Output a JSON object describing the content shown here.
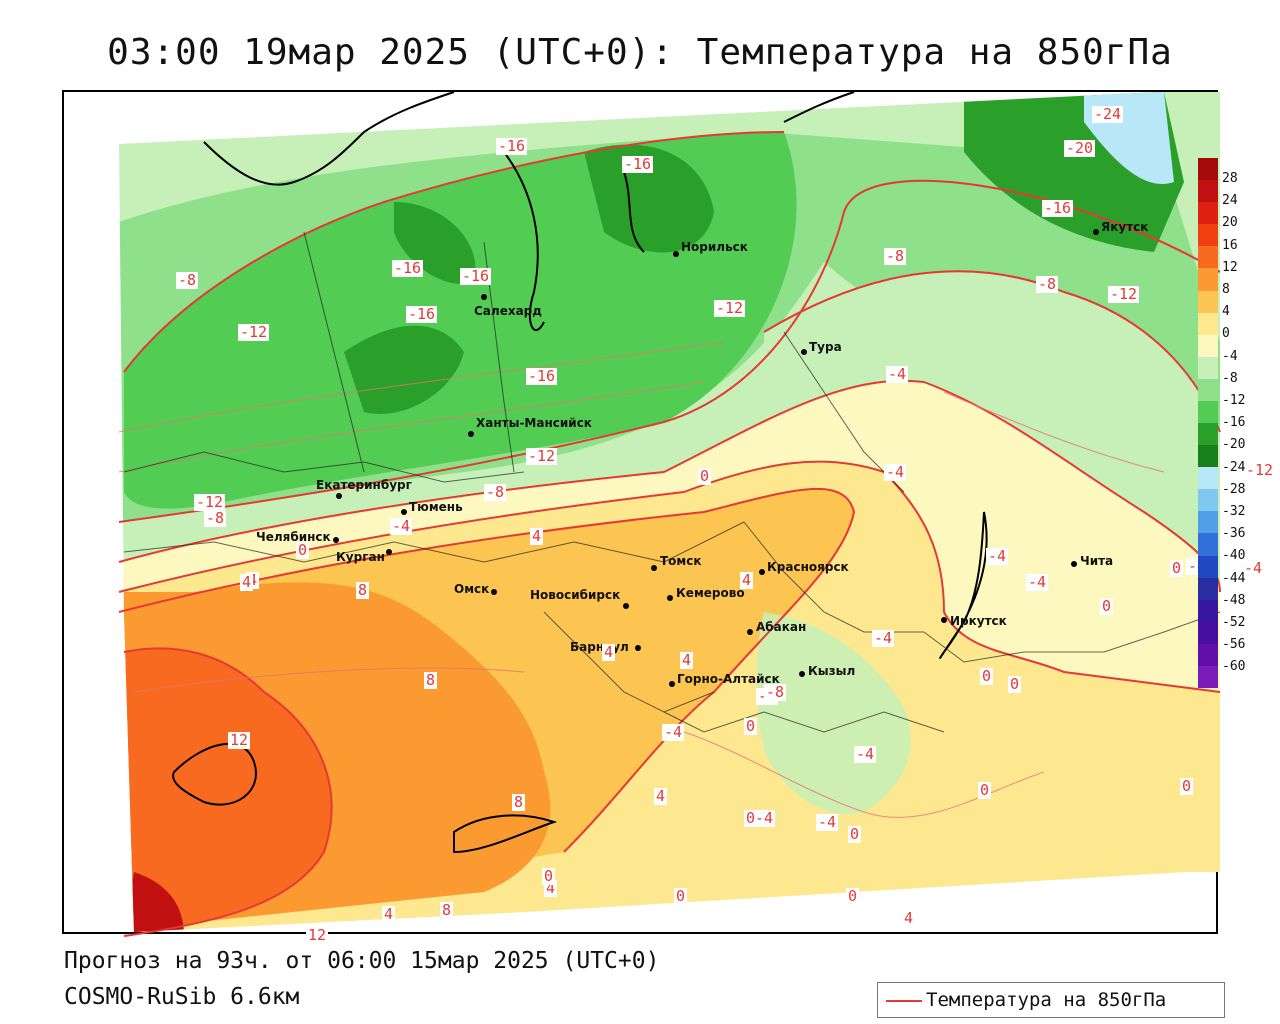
{
  "title": "03:00 19мар 2025 (UTC+0): Температура на 850гПа",
  "footer": {
    "forecast": "Прогноз на 93ч. от 06:00 15мар 2025 (UTC+0)",
    "model": "COSMO-RuSib 6.6км"
  },
  "legend": {
    "label": "Температура на 850гПа",
    "line_color": "#e53935"
  },
  "colorbar": {
    "labels": [
      "28",
      "24",
      "20",
      "16",
      "12",
      "8",
      "4",
      "0",
      "-4",
      "-8",
      "-12",
      "-16",
      "-20",
      "-24",
      "-28",
      "-32",
      "-36",
      "-40",
      "-44",
      "-48",
      "-52",
      "-56",
      "-60"
    ],
    "colors": [
      "#a50a0a",
      "#c01010",
      "#e02010",
      "#f04010",
      "#f86a20",
      "#fb9a30",
      "#fcc450",
      "#fde890",
      "#fdf7c0",
      "#c6f0b8",
      "#8ee08a",
      "#52cc52",
      "#2aa02a",
      "#188018",
      "#b8e8f8",
      "#80c8f0",
      "#50a0e8",
      "#3070d8",
      "#2048c0",
      "#2830a0",
      "#3818a0",
      "#4810a0",
      "#6010a8",
      "#7a1cb8"
    ]
  },
  "cities": [
    {
      "name": "Норильск"
    },
    {
      "name": "Салехард"
    },
    {
      "name": "Якутск"
    },
    {
      "name": "Тура"
    },
    {
      "name": "Ханты-Мансийск"
    },
    {
      "name": "Екатеринбург"
    },
    {
      "name": "Тюмень"
    },
    {
      "name": "Челябинск"
    },
    {
      "name": "Курган"
    },
    {
      "name": "Омск"
    },
    {
      "name": "Томск"
    },
    {
      "name": "Красноярск"
    },
    {
      "name": "Новосибирск"
    },
    {
      "name": "Кемерово"
    },
    {
      "name": "Абакан"
    },
    {
      "name": "Барнаул"
    },
    {
      "name": "Иркутск"
    },
    {
      "name": "Чита"
    },
    {
      "name": "Кызыл"
    },
    {
      "name": "Горно-Алтайск"
    }
  ],
  "isotherm_labels": [
    "-16",
    "-16",
    "-24",
    "-20",
    "-16",
    "-8",
    "-8",
    "-12",
    "-12",
    "-8",
    "-12",
    "-16",
    "-16",
    "-16",
    "-16",
    "-12",
    "-4",
    "-4",
    "-12",
    "-8",
    "-4",
    "0",
    "4",
    "0",
    "-4",
    "-12",
    "-8",
    "-4",
    "0",
    "4",
    "4",
    "4",
    "8",
    "4",
    "0",
    "-4",
    "-4",
    "-4",
    "0",
    "8",
    "4",
    "-8",
    "-4",
    "-4",
    "-4",
    "0",
    "0",
    "0",
    "12",
    "8",
    "4",
    "0",
    "0",
    "0",
    "4",
    "0-4",
    "-4",
    "0",
    "4",
    "8",
    "0",
    "12",
    "4"
  ]
}
